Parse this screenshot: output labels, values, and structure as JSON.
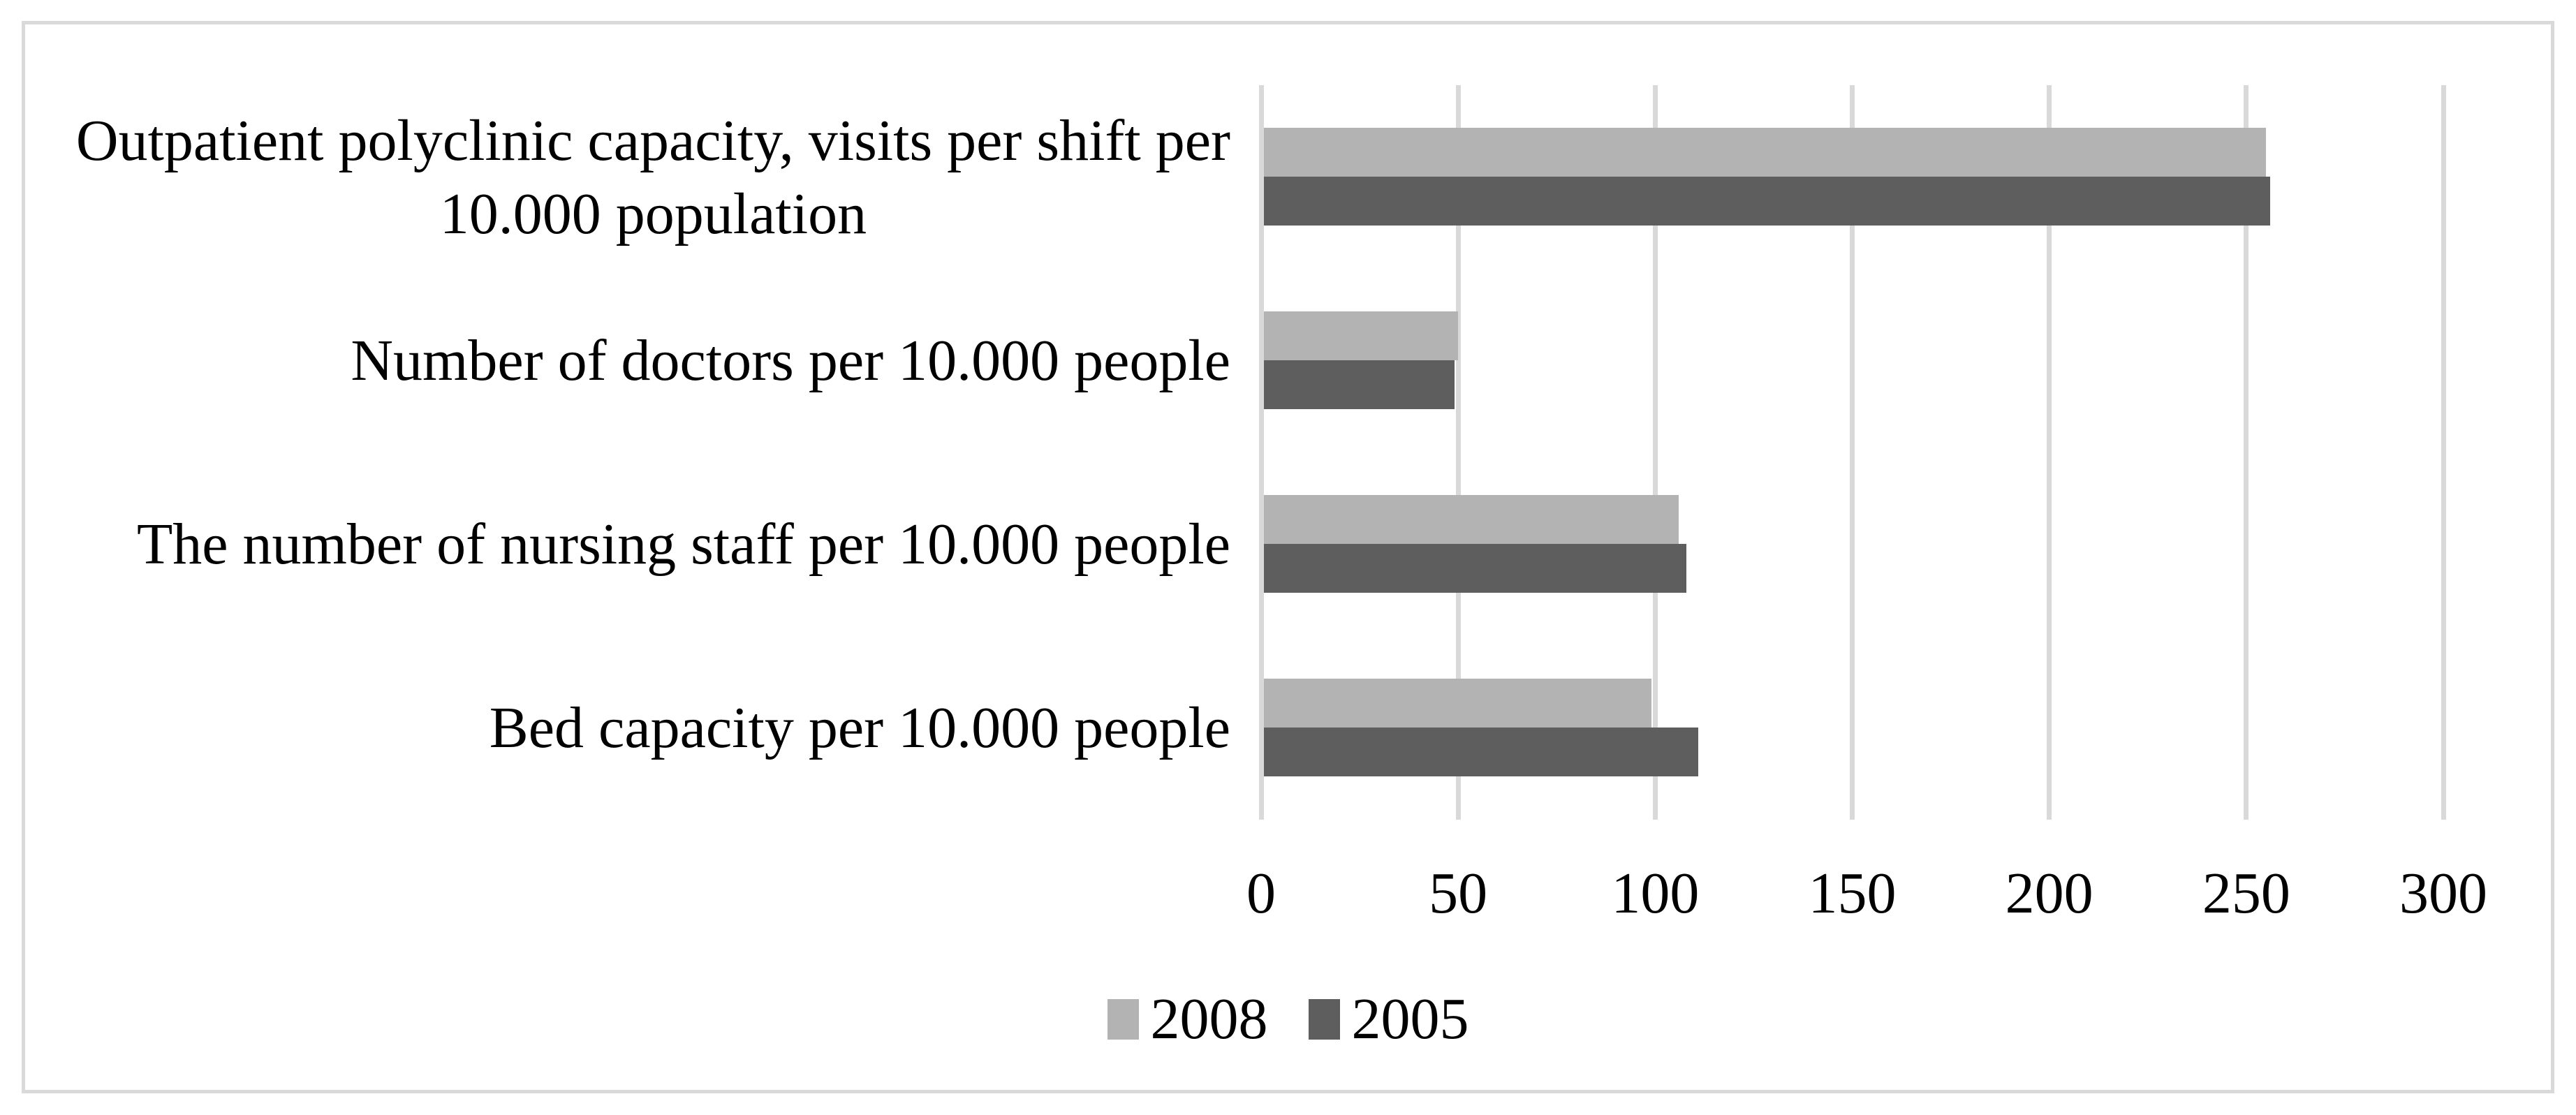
{
  "chart_data": {
    "type": "bar",
    "orientation": "horizontal",
    "title": "",
    "categories": [
      "Outpatient polyclinic capacity, visits per shift per\n10.000 population",
      "Number of doctors per 10.000 people",
      "The number of nursing staff per 10.000 people",
      "Bed capacity per 10.000 people"
    ],
    "series": [
      {
        "name": "2008",
        "color": "#b3b3b3",
        "values": [
          255,
          50,
          106,
          99
        ]
      },
      {
        "name": "2005",
        "color": "#5e5e5e",
        "values": [
          256,
          49,
          108,
          111
        ]
      }
    ],
    "xlim": [
      0,
      300
    ],
    "xticks": [
      0,
      50,
      100,
      150,
      200,
      250,
      300
    ],
    "xtick_labels": [
      "0",
      "50",
      "100",
      "150",
      "200",
      "250",
      "300"
    ],
    "xlabel": "",
    "ylabel": "",
    "grid": true,
    "gridline_color": "#d9d9d9",
    "frame_color": "#d9d9d9",
    "text_color": "#000000",
    "background_color": "#ffffff",
    "legend_position": "bottom"
  }
}
